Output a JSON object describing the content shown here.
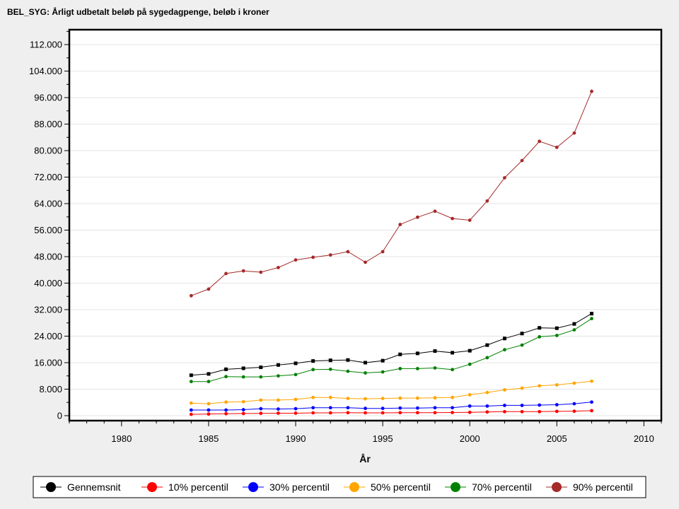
{
  "chart_data": {
    "type": "line",
    "title": "BEL_SYG: Årligt udbetalt beløb på sygedagpenge, beløb i kroner",
    "xlabel": "År",
    "ylabel": "",
    "xlim": [
      1977,
      2011
    ],
    "ylim": [
      -1500,
      116500
    ],
    "x_ticks": [
      1980,
      1985,
      1990,
      1995,
      2000,
      2005,
      2010
    ],
    "x_tick_labels": [
      "1980",
      "1985",
      "1990",
      "1995",
      "2000",
      "2005",
      "2010"
    ],
    "y_ticks": [
      0,
      8000,
      16000,
      24000,
      32000,
      40000,
      48000,
      56000,
      64000,
      72000,
      80000,
      88000,
      96000,
      104000,
      112000
    ],
    "y_tick_labels": [
      "0",
      "8.000",
      "16.000",
      "24.000",
      "32.000",
      "40.000",
      "48.000",
      "56.000",
      "64.000",
      "72.000",
      "80.000",
      "88.000",
      "96.000",
      "104.000",
      "112.000"
    ],
    "grid": "horizontal",
    "legend_position": "bottom",
    "x": [
      1984,
      1985,
      1986,
      1987,
      1988,
      1989,
      1990,
      1991,
      1992,
      1993,
      1994,
      1995,
      1996,
      1997,
      1998,
      1999,
      2000,
      2001,
      2002,
      2003,
      2004,
      2005,
      2006,
      2007
    ],
    "series": [
      {
        "name": "Gennemsnit",
        "color": "#000000",
        "marker": "square",
        "values": [
          12200,
          12600,
          14000,
          14300,
          14600,
          15300,
          15800,
          16500,
          16700,
          16800,
          16000,
          16600,
          18500,
          18800,
          19500,
          19000,
          19600,
          21300,
          23300,
          24800,
          26500,
          26400,
          27700,
          30800
        ]
      },
      {
        "name": "10% percentil",
        "color": "#ff0000",
        "marker": "circle",
        "values": [
          400,
          500,
          600,
          650,
          700,
          750,
          750,
          850,
          850,
          900,
          850,
          850,
          900,
          900,
          900,
          950,
          1000,
          1100,
          1200,
          1200,
          1200,
          1300,
          1350,
          1500
        ]
      },
      {
        "name": "30% percentil",
        "color": "#0000ff",
        "marker": "circle",
        "values": [
          1700,
          1700,
          1700,
          1800,
          2100,
          2000,
          2100,
          2400,
          2400,
          2400,
          2200,
          2200,
          2300,
          2300,
          2400,
          2400,
          2900,
          2900,
          3100,
          3100,
          3200,
          3300,
          3600,
          4100
        ]
      },
      {
        "name": "50% percentil",
        "color": "#ffa500",
        "marker": "circle",
        "values": [
          3800,
          3600,
          4100,
          4200,
          4700,
          4700,
          4900,
          5500,
          5500,
          5200,
          5100,
          5200,
          5300,
          5300,
          5400,
          5500,
          6300,
          7000,
          7800,
          8300,
          9000,
          9300,
          9800,
          10400
        ]
      },
      {
        "name": "70% percentil",
        "color": "#008000",
        "marker": "circle",
        "values": [
          10300,
          10300,
          11800,
          11700,
          11700,
          12000,
          12400,
          13900,
          14000,
          13400,
          12900,
          13200,
          14200,
          14200,
          14400,
          13900,
          15500,
          17500,
          19900,
          21300,
          23800,
          24200,
          25900,
          29300
        ]
      },
      {
        "name": "90% percentil",
        "color": "#a52a2a",
        "marker": "circle",
        "values": [
          36200,
          38200,
          42900,
          43700,
          43300,
          44700,
          47000,
          47800,
          48500,
          49500,
          46300,
          49500,
          57700,
          59900,
          61700,
          59500,
          59000,
          64800,
          71800,
          77000,
          82800,
          81000,
          85300,
          97900
        ]
      }
    ]
  }
}
